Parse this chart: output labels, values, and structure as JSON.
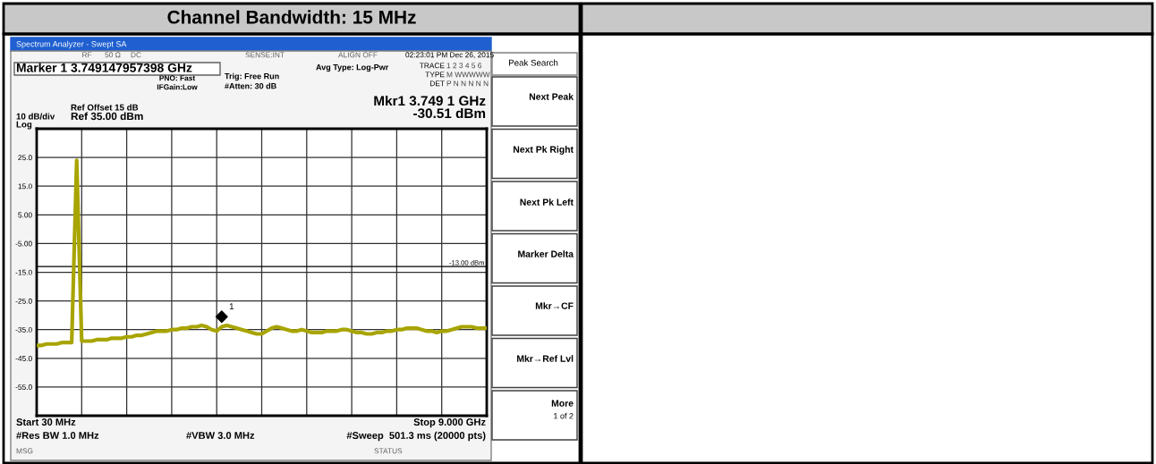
{
  "chart_data": {
    "type": "line",
    "title": "Channel Bandwidth: 15 MHz",
    "categories": [
      null,
      null,
      null,
      null,
      null,
      null,
      null,
      null,
      null,
      null,
      null,
      null,
      null,
      null,
      null,
      null,
      null,
      null,
      null,
      null,
      null,
      null,
      null,
      null,
      null,
      null,
      null,
      null,
      null,
      null,
      null,
      null,
      null,
      null,
      null,
      null,
      null,
      null,
      null,
      null,
      null,
      null,
      null,
      null,
      null,
      null,
      null,
      null,
      null,
      null,
      null,
      null,
      null,
      null,
      null,
      null,
      null,
      null,
      null,
      null,
      null,
      null,
      null,
      null,
      null,
      null,
      null,
      null,
      null,
      null,
      null,
      null,
      null,
      null,
      null,
      null,
      null,
      null,
      null,
      null,
      null,
      null,
      null,
      null,
      null,
      null,
      null,
      null,
      null,
      null,
      null
    ],
    "ylim": [
      -65,
      35
    ],
    "yticks": [
      {
        "value": 25,
        "label": "25.0"
      },
      {
        "value": 15,
        "label": "15.0"
      },
      {
        "value": 5,
        "label": "5.00"
      },
      {
        "value": -5,
        "label": "-5.00"
      },
      {
        "value": -15,
        "label": "-15.0"
      },
      {
        "value": -25,
        "label": "-25.0"
      },
      {
        "value": -35,
        "label": "-35.0"
      },
      {
        "value": -45,
        "label": "-45.0"
      },
      {
        "value": -55,
        "label": "-55.0"
      }
    ],
    "tick_labels": "y",
    "grid": true,
    "line_style": "solid",
    "series": [
      {
        "color": "#a8a400",
        "values": [
          -40.5,
          -40.5,
          -40,
          -40,
          -40,
          -39.5,
          -39.5,
          -39.5,
          24,
          -39,
          -39,
          -39,
          -38.5,
          -38.5,
          -38.5,
          -38,
          -38,
          -38,
          -37.5,
          -37.5,
          -37,
          -37,
          -36.5,
          -36,
          -35.5,
          -35.5,
          -35.5,
          -35,
          -35,
          -34.5,
          -34.5,
          -34,
          -34,
          -33.5,
          -34,
          -35,
          -35.5,
          -34,
          -33.5,
          -34,
          -34.5,
          -35,
          -35.5,
          -36,
          -36.5,
          -36.5,
          -35.5,
          -34.5,
          -34,
          -34.5,
          -35,
          -35.5,
          -35.5,
          -35,
          -35.5,
          -36,
          -36,
          -36,
          -35.5,
          -35.5,
          -35.5,
          -35,
          -35,
          -35.5,
          -36,
          -36,
          -36.5,
          -36.5,
          -36,
          -36,
          -35.5,
          -35.5,
          -35,
          -35,
          -34.5,
          -34.5,
          -34.5,
          -35,
          -35.5,
          -35.5,
          -36,
          -35.5,
          -35.5,
          -35,
          -34.5,
          -34,
          -34,
          -34,
          -34.5,
          -34.5,
          -34.5
        ]
      },
      {
        "type": "scatter",
        "color": "#000000",
        "marker": "diamond",
        "values": [
          null,
          null,
          null,
          null,
          null,
          null,
          null,
          null,
          null,
          null,
          null,
          null,
          null,
          null,
          null,
          null,
          null,
          null,
          null,
          null,
          null,
          null,
          null,
          null,
          null,
          null,
          null,
          null,
          null,
          null,
          null,
          null,
          null,
          null,
          null,
          null,
          null,
          -30.5,
          null,
          null,
          null,
          null,
          null,
          null,
          null,
          null,
          null,
          null,
          null,
          null,
          null,
          null,
          null,
          null,
          null,
          null,
          null,
          null,
          null,
          null,
          null,
          null,
          null,
          null,
          null,
          null,
          null,
          null,
          null,
          null,
          null,
          null,
          null,
          null,
          null,
          null,
          null,
          null,
          null,
          null,
          null,
          null,
          null,
          null,
          null,
          null,
          null,
          null,
          null,
          null,
          null
        ]
      }
    ],
    "ref_lines": [
      {
        "axis": "y",
        "value": -13,
        "label": "-13.00 dBm",
        "color": "#000000",
        "line_style": "solid"
      }
    ],
    "annotations": [
      "Spectrum Analyzer - Swept SA",
      "RF",
      "50 Ω",
      "DC",
      "SENSE:INT",
      "ALIGN OFF",
      "02:23:01 PM Dec 26, 2015",
      "Marker 1 3.749147957398 GHz",
      "PNO: Fast",
      "IFGain:Low",
      "Trig: Free Run",
      "#Atten: 30 dB",
      "Avg Type: Log-Pwr",
      "TRACE",
      "1 2 3 4 5 6",
      "TYPE",
      "M WWWWW",
      "DET",
      "P N N N N N",
      "Ref Offset 15 dB",
      "10 dB/div",
      "Ref 35.00 dBm",
      "Log",
      "Mkr1 3.749 1 GHz",
      "-30.51 dBm",
      "Start 30 MHz",
      "Stop 9.000 GHz",
      "#Res BW 1.0 MHz",
      "#VBW 3.0 MHz",
      "#Sweep  501.3 ms (20000 pts)",
      "MSG",
      "STATUS",
      "Peak Search",
      "Next Peak",
      "Next Pk Right",
      "Next Pk Left",
      "Marker Delta",
      "Mkr→CF",
      "Mkr→Ref Lvl",
      "More",
      "1 of 2",
      "1"
    ]
  }
}
